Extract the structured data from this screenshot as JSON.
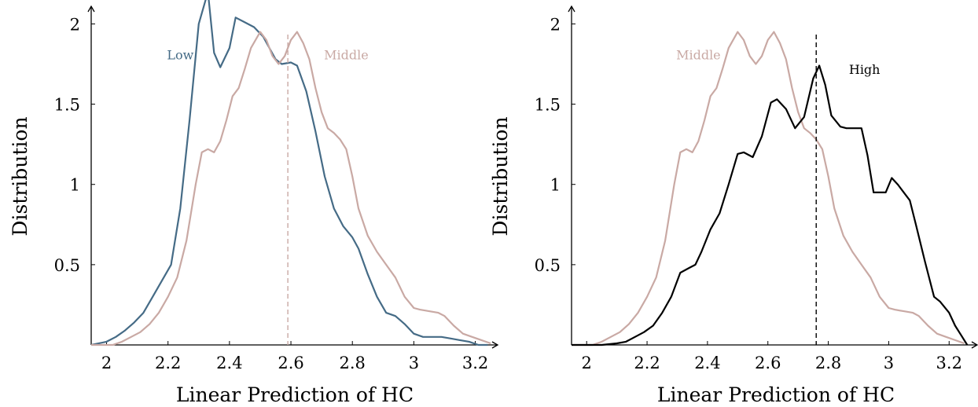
{
  "chart_data": [
    {
      "type": "line",
      "xlabel": "Linear Prediction of HC",
      "ylabel": "Distribution",
      "xlim": [
        1.95,
        3.26
      ],
      "ylim": [
        0,
        2.1
      ],
      "xticks": [
        2,
        2.2,
        2.4,
        2.6,
        2.8,
        3,
        3.2
      ],
      "xtick_labels": [
        "2",
        "2.2",
        "2.4",
        "2.6",
        "2.8",
        "3",
        "3.2"
      ],
      "yticks": [
        0.5,
        1,
        1.5,
        2
      ],
      "ytick_labels": [
        "0.5",
        "1",
        "1.5",
        "2"
      ],
      "vline": {
        "x": 2.59,
        "color": "#c9a9a4",
        "style": "dashed"
      },
      "series": [
        {
          "name": "Low",
          "color": "#456b86",
          "label_pos": [
            2.24,
            1.78
          ],
          "x": [
            1.95,
            2.0,
            2.03,
            2.06,
            2.09,
            2.12,
            2.15,
            2.18,
            2.21,
            2.24,
            2.27,
            2.3,
            2.33,
            2.35,
            2.37,
            2.4,
            2.42,
            2.45,
            2.48,
            2.51,
            2.53,
            2.55,
            2.57,
            2.6,
            2.62,
            2.65,
            2.68,
            2.71,
            2.74,
            2.77,
            2.8,
            2.82,
            2.85,
            2.88,
            2.91,
            2.94,
            2.97,
            3.0,
            3.03,
            3.06,
            3.09,
            3.12,
            3.15,
            3.18,
            3.21,
            3.24
          ],
          "y": [
            0.0,
            0.02,
            0.05,
            0.09,
            0.14,
            0.2,
            0.3,
            0.4,
            0.5,
            0.85,
            1.4,
            2.0,
            2.2,
            1.82,
            1.73,
            1.85,
            2.04,
            2.01,
            1.98,
            1.92,
            1.85,
            1.78,
            1.75,
            1.76,
            1.74,
            1.58,
            1.33,
            1.05,
            0.85,
            0.74,
            0.67,
            0.6,
            0.44,
            0.3,
            0.2,
            0.18,
            0.13,
            0.07,
            0.05,
            0.05,
            0.05,
            0.04,
            0.03,
            0.02,
            0.0,
            0.0
          ]
        },
        {
          "name": "Middle",
          "color": "#c9a9a4",
          "label_pos": [
            2.78,
            1.78
          ],
          "x": [
            1.95,
            2.02,
            2.05,
            2.08,
            2.11,
            2.14,
            2.17,
            2.2,
            2.23,
            2.26,
            2.29,
            2.31,
            2.33,
            2.35,
            2.37,
            2.39,
            2.41,
            2.43,
            2.45,
            2.47,
            2.5,
            2.52,
            2.54,
            2.56,
            2.58,
            2.6,
            2.62,
            2.64,
            2.66,
            2.68,
            2.7,
            2.72,
            2.74,
            2.76,
            2.78,
            2.8,
            2.82,
            2.85,
            2.88,
            2.91,
            2.94,
            2.97,
            3.0,
            3.02,
            3.05,
            3.08,
            3.1,
            3.13,
            3.16,
            3.19,
            3.22,
            3.25
          ],
          "y": [
            0.0,
            0.0,
            0.02,
            0.05,
            0.08,
            0.13,
            0.2,
            0.3,
            0.42,
            0.65,
            1.0,
            1.2,
            1.22,
            1.2,
            1.27,
            1.4,
            1.55,
            1.6,
            1.72,
            1.85,
            1.95,
            1.9,
            1.8,
            1.75,
            1.8,
            1.9,
            1.95,
            1.88,
            1.78,
            1.6,
            1.45,
            1.35,
            1.32,
            1.28,
            1.22,
            1.05,
            0.85,
            0.68,
            0.58,
            0.5,
            0.42,
            0.3,
            0.23,
            0.22,
            0.21,
            0.2,
            0.18,
            0.12,
            0.07,
            0.05,
            0.03,
            0.01
          ]
        }
      ]
    },
    {
      "type": "line",
      "xlabel": "Linear Prediction of HC",
      "ylabel": "Distribution",
      "xlim": [
        1.95,
        3.28
      ],
      "ylim": [
        0,
        2.1
      ],
      "xticks": [
        2,
        2.2,
        2.4,
        2.6,
        2.8,
        3,
        3.2
      ],
      "xtick_labels": [
        "2",
        "2.2",
        "2.4",
        "2.6",
        "2.8",
        "3",
        "3.2"
      ],
      "yticks": [
        0.5,
        1,
        1.5,
        2
      ],
      "ytick_labels": [
        "0.5",
        "1",
        "1.5",
        "2"
      ],
      "vline": {
        "x": 2.76,
        "color": "#000000",
        "style": "dashed"
      },
      "series": [
        {
          "name": "Middle",
          "color": "#c9a9a4",
          "label_pos": [
            2.37,
            1.78
          ],
          "x": [
            1.95,
            2.02,
            2.05,
            2.08,
            2.11,
            2.14,
            2.17,
            2.2,
            2.23,
            2.26,
            2.29,
            2.31,
            2.33,
            2.35,
            2.37,
            2.39,
            2.41,
            2.43,
            2.45,
            2.47,
            2.5,
            2.52,
            2.54,
            2.56,
            2.58,
            2.6,
            2.62,
            2.64,
            2.66,
            2.68,
            2.7,
            2.72,
            2.74,
            2.76,
            2.78,
            2.8,
            2.82,
            2.85,
            2.88,
            2.91,
            2.94,
            2.97,
            3.0,
            3.02,
            3.05,
            3.08,
            3.1,
            3.13,
            3.16,
            3.19,
            3.22,
            3.25
          ],
          "y": [
            0.0,
            0.0,
            0.02,
            0.05,
            0.08,
            0.13,
            0.2,
            0.3,
            0.42,
            0.65,
            1.0,
            1.2,
            1.22,
            1.2,
            1.27,
            1.4,
            1.55,
            1.6,
            1.72,
            1.85,
            1.95,
            1.9,
            1.8,
            1.75,
            1.8,
            1.9,
            1.95,
            1.88,
            1.78,
            1.6,
            1.45,
            1.35,
            1.32,
            1.28,
            1.22,
            1.05,
            0.85,
            0.68,
            0.58,
            0.5,
            0.42,
            0.3,
            0.23,
            0.22,
            0.21,
            0.2,
            0.18,
            0.12,
            0.07,
            0.05,
            0.03,
            0.01
          ]
        },
        {
          "name": "High",
          "color": "#000000",
          "label_pos": [
            2.92,
            1.69
          ],
          "x": [
            1.95,
            2.05,
            2.1,
            2.13,
            2.16,
            2.19,
            2.22,
            2.25,
            2.28,
            2.31,
            2.34,
            2.36,
            2.38,
            2.41,
            2.44,
            2.47,
            2.5,
            2.52,
            2.55,
            2.58,
            2.61,
            2.63,
            2.66,
            2.69,
            2.72,
            2.75,
            2.77,
            2.79,
            2.81,
            2.84,
            2.86,
            2.89,
            2.91,
            2.93,
            2.95,
            2.97,
            2.99,
            3.01,
            3.03,
            3.05,
            3.07,
            3.09,
            3.12,
            3.15,
            3.17,
            3.2,
            3.22,
            3.24,
            3.26
          ],
          "y": [
            0.0,
            0.0,
            0.01,
            0.02,
            0.05,
            0.08,
            0.12,
            0.2,
            0.3,
            0.45,
            0.48,
            0.5,
            0.58,
            0.72,
            0.82,
            1.0,
            1.19,
            1.2,
            1.17,
            1.3,
            1.51,
            1.53,
            1.47,
            1.35,
            1.42,
            1.66,
            1.74,
            1.62,
            1.43,
            1.36,
            1.35,
            1.35,
            1.35,
            1.18,
            0.95,
            0.95,
            0.95,
            1.04,
            1.0,
            0.95,
            0.9,
            0.75,
            0.52,
            0.3,
            0.27,
            0.2,
            0.12,
            0.06,
            0.0
          ]
        }
      ]
    }
  ]
}
